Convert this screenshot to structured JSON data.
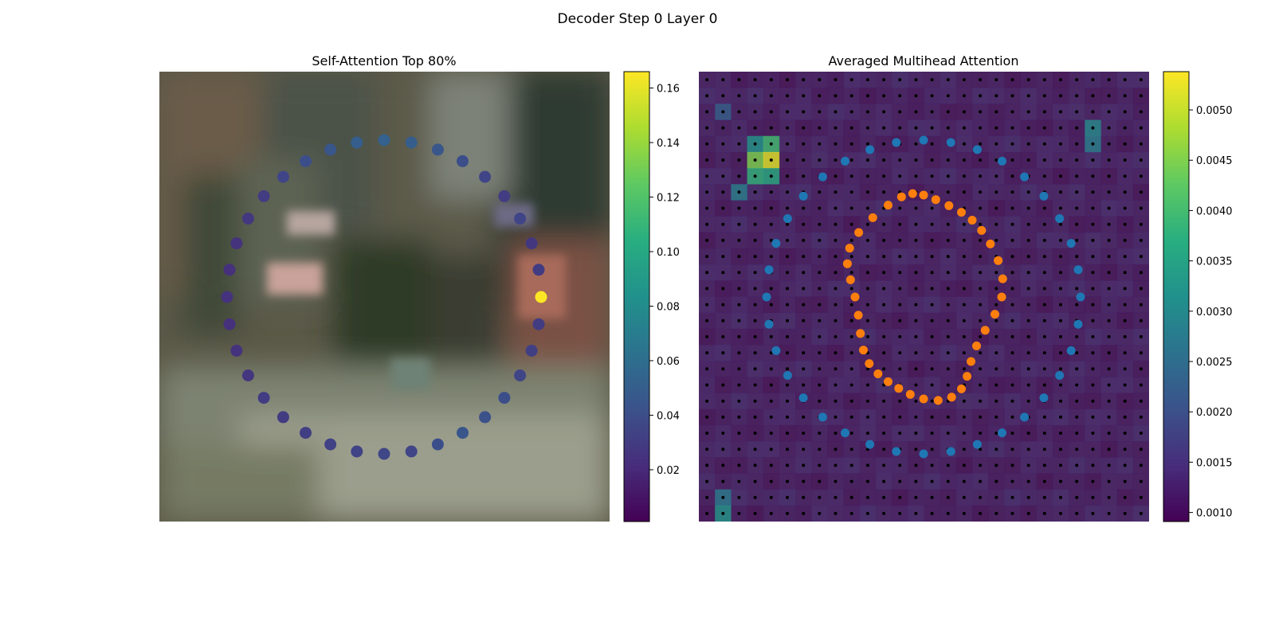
{
  "figure": {
    "suptitle": "Decoder Step 0 Layer 0"
  },
  "chart_data": [
    {
      "type": "scatter",
      "title": "Self-Attention Top 80%",
      "xlabel": "",
      "ylabel": "",
      "colormap": "viridis",
      "background": "blurred street-scene image",
      "colorbar": {
        "range": [
          0.001,
          0.166
        ],
        "ticks": [
          0.02,
          0.04,
          0.06,
          0.08,
          0.1,
          0.12,
          0.14,
          0.16
        ],
        "tick_labels": [
          "0.02",
          "0.04",
          "0.06",
          "0.08",
          "0.10",
          "0.12",
          "0.14",
          "0.16"
        ]
      },
      "points": [
        {
          "angle_deg": 0,
          "value": 0.166
        },
        {
          "angle_deg": 10,
          "value": 0.03
        },
        {
          "angle_deg": 20,
          "value": 0.028
        },
        {
          "angle_deg": 30,
          "value": 0.035
        },
        {
          "angle_deg": 40,
          "value": 0.03
        },
        {
          "angle_deg": 50,
          "value": 0.035
        },
        {
          "angle_deg": 60,
          "value": 0.04
        },
        {
          "angle_deg": 70,
          "value": 0.045
        },
        {
          "angle_deg": 80,
          "value": 0.05
        },
        {
          "angle_deg": 90,
          "value": 0.052
        },
        {
          "angle_deg": 100,
          "value": 0.05
        },
        {
          "angle_deg": 110,
          "value": 0.045
        },
        {
          "angle_deg": 120,
          "value": 0.04
        },
        {
          "angle_deg": 130,
          "value": 0.035
        },
        {
          "angle_deg": 140,
          "value": 0.03
        },
        {
          "angle_deg": 150,
          "value": 0.028
        },
        {
          "angle_deg": 160,
          "value": 0.025
        },
        {
          "angle_deg": 170,
          "value": 0.024
        },
        {
          "angle_deg": 180,
          "value": 0.025
        },
        {
          "angle_deg": 190,
          "value": 0.024
        },
        {
          "angle_deg": 200,
          "value": 0.025
        },
        {
          "angle_deg": 210,
          "value": 0.027
        },
        {
          "angle_deg": 220,
          "value": 0.03
        },
        {
          "angle_deg": 230,
          "value": 0.03
        },
        {
          "angle_deg": 240,
          "value": 0.032
        },
        {
          "angle_deg": 250,
          "value": 0.033
        },
        {
          "angle_deg": 260,
          "value": 0.034
        },
        {
          "angle_deg": 270,
          "value": 0.036
        },
        {
          "angle_deg": 280,
          "value": 0.035
        },
        {
          "angle_deg": 290,
          "value": 0.04
        },
        {
          "angle_deg": 300,
          "value": 0.045
        },
        {
          "angle_deg": 310,
          "value": 0.042
        },
        {
          "angle_deg": 320,
          "value": 0.04
        },
        {
          "angle_deg": 330,
          "value": 0.035
        },
        {
          "angle_deg": 340,
          "value": 0.032
        },
        {
          "angle_deg": 350,
          "value": 0.03
        }
      ]
    },
    {
      "type": "heatmap",
      "title": "Averaged Multihead Attention",
      "xlabel": "",
      "ylabel": "",
      "colormap": "viridis",
      "grid_size": 28,
      "colorbar": {
        "range": [
          0.00091,
          0.00538
        ],
        "ticks": [
          0.001,
          0.0015,
          0.002,
          0.0025,
          0.003,
          0.0035,
          0.004,
          0.0045,
          0.005
        ],
        "tick_labels": [
          "0.0010",
          "0.0015",
          "0.0020",
          "0.0025",
          "0.0030",
          "0.0035",
          "0.0040",
          "0.0045",
          "0.0050"
        ]
      },
      "hotspots": [
        {
          "row": 5,
          "col": 4,
          "value": 0.0052
        },
        {
          "row": 5,
          "col": 3,
          "value": 0.0045
        },
        {
          "row": 4,
          "col": 4,
          "value": 0.004
        },
        {
          "row": 6,
          "col": 3,
          "value": 0.0038
        },
        {
          "row": 6,
          "col": 4,
          "value": 0.0036
        },
        {
          "row": 4,
          "col": 3,
          "value": 0.0032
        },
        {
          "row": 7,
          "col": 2,
          "value": 0.0028
        },
        {
          "row": 3,
          "col": 24,
          "value": 0.003
        },
        {
          "row": 4,
          "col": 24,
          "value": 0.0028
        },
        {
          "row": 27,
          "col": 1,
          "value": 0.0032
        },
        {
          "row": 26,
          "col": 1,
          "value": 0.0027
        },
        {
          "row": 2,
          "col": 1,
          "value": 0.0022
        }
      ],
      "series": [
        {
          "name": "",
          "color": "#1f77b4",
          "shape": "outer ring",
          "count": 36
        },
        {
          "name": "",
          "color": "#ff7f0e",
          "shape": "inner contour",
          "count": 36
        }
      ]
    }
  ]
}
